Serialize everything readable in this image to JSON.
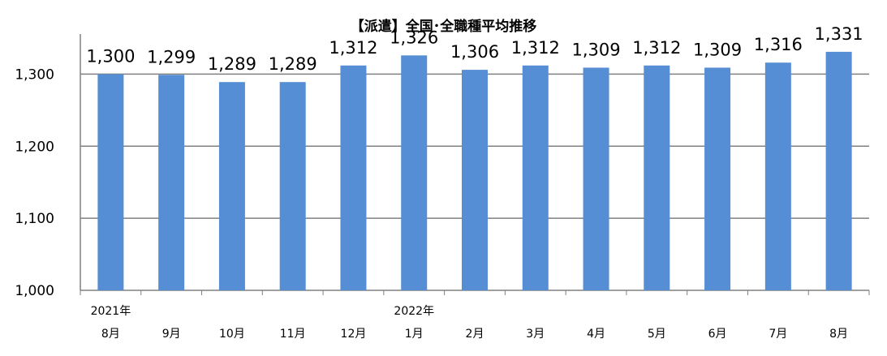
{
  "chart_data": {
    "type": "bar",
    "title": "【派遣】全国･全職種平均推移",
    "categories": [
      "8月",
      "9月",
      "10月",
      "11月",
      "12月",
      "1月",
      "2月",
      "3月",
      "4月",
      "5月",
      "6月",
      "7月",
      "8月"
    ],
    "year_labels": [
      {
        "index": 0,
        "label": "2021年"
      },
      {
        "index": 5,
        "label": "2022年"
      }
    ],
    "values": [
      1300,
      1299,
      1289,
      1289,
      1312,
      1326,
      1306,
      1312,
      1309,
      1312,
      1309,
      1316,
      1331
    ],
    "data_labels": [
      "1,300",
      "1,299",
      "1,289",
      "1,289",
      "1,312",
      "1,326",
      "1,306",
      "1,312",
      "1,309",
      "1,312",
      "1,309",
      "1,316",
      "1,331"
    ],
    "y_ticks": [
      {
        "value": 1000,
        "label": "1,000"
      },
      {
        "value": 1100,
        "label": "1,100"
      },
      {
        "value": 1200,
        "label": "1,200"
      },
      {
        "value": 1300,
        "label": "1,300"
      }
    ],
    "ylim": [
      1000,
      1350
    ],
    "grid": true,
    "bar_color": "#558ED5",
    "grid_color": "#808080",
    "xlabel": "",
    "ylabel": ""
  }
}
